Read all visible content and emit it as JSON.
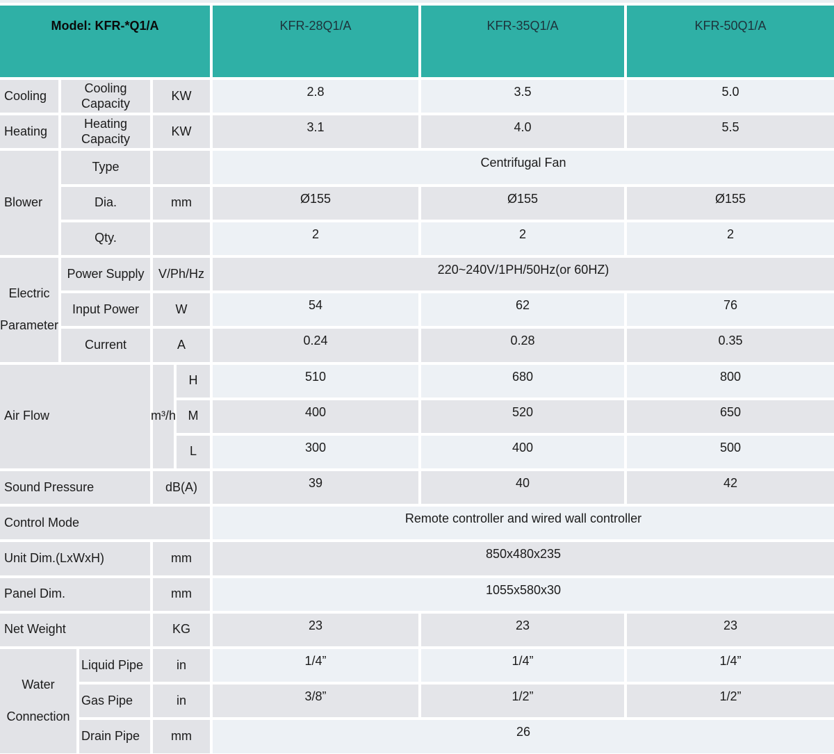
{
  "colors": {
    "header_teal": "#2fb0a6",
    "label_gray": "#e2e3e7",
    "row_light": "#edf1f5",
    "row_gray": "#e4e5e9"
  },
  "header": {
    "model": "Model: KFR-*Q1/A",
    "col1": "KFR-28Q1/A",
    "col2": "KFR-35Q1/A",
    "col3": "KFR-50Q1/A"
  },
  "cooling": {
    "group": "Cooling",
    "label": "Cooling Capacity",
    "unit": "KW",
    "v": [
      "2.8",
      "3.5",
      "5.0"
    ]
  },
  "heating": {
    "group": "Heating",
    "label": "Heating Capacity",
    "unit": "KW",
    "v": [
      "3.1",
      "4.0",
      "5.5"
    ]
  },
  "blower": {
    "group": "Blower",
    "type": {
      "label": "Type",
      "value": "Centrifugal Fan"
    },
    "dia": {
      "label": "Dia.",
      "unit": "mm",
      "v": [
        "Ø155",
        "Ø155",
        "Ø155"
      ]
    },
    "qty": {
      "label": "Qty.",
      "v": [
        "2",
        "2",
        "2"
      ]
    }
  },
  "electric": {
    "group": "Electric\nParameter",
    "power_supply": {
      "label": "Power Supply",
      "unit": "V/Ph/Hz",
      "value": "220~240V/1PH/50Hz(or 60HZ)"
    },
    "input_power": {
      "label": "Input Power",
      "unit": "W",
      "v": [
        "54",
        "62",
        "76"
      ]
    },
    "current": {
      "label": "Current",
      "unit": "A",
      "v": [
        "0.24",
        "0.28",
        "0.35"
      ]
    }
  },
  "air_flow": {
    "group": "Air Flow",
    "unit": "m³/h",
    "h": {
      "label": "H",
      "v": [
        "510",
        "680",
        "800"
      ]
    },
    "m": {
      "label": "M",
      "v": [
        "400",
        "520",
        "650"
      ]
    },
    "l": {
      "label": "L",
      "v": [
        "300",
        "400",
        "500"
      ]
    }
  },
  "sound": {
    "label": "Sound Pressure",
    "unit": "dB(A)",
    "v": [
      "39",
      "40",
      "42"
    ]
  },
  "control": {
    "label": "Control Mode",
    "value": "Remote controller and wired wall controller"
  },
  "unit_dim": {
    "label": "Unit Dim.(LxWxH)",
    "unit": "mm",
    "value": "850x480x235"
  },
  "panel_dim": {
    "label": "Panel Dim.",
    "unit": "mm",
    "value": "1055x580x30"
  },
  "net_weight": {
    "label": "Net Weight",
    "unit": "KG",
    "v": [
      "23",
      "23",
      "23"
    ]
  },
  "water": {
    "group": "Water\nConnection",
    "liquid": {
      "label": "Liquid Pipe",
      "unit": "in",
      "v": [
        "1/4”",
        "1/4”",
        "1/4”"
      ]
    },
    "gas": {
      "label": "Gas Pipe",
      "unit": "in",
      "v": [
        "3/8”",
        "1/2”",
        "1/2”"
      ]
    },
    "drain": {
      "label": "Drain Pipe",
      "unit": "mm",
      "value": "26"
    }
  }
}
